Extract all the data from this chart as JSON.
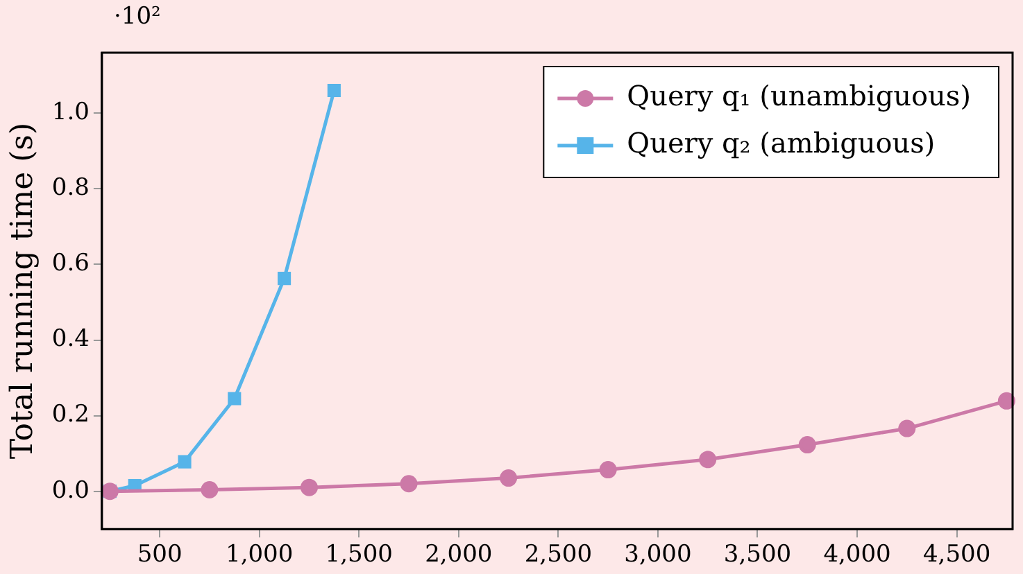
{
  "chart_data": {
    "type": "line",
    "ylabel": "Total running time (s)",
    "annotations": [
      "·10²"
    ],
    "xlim": [
      210,
      4780
    ],
    "ylim": [
      -0.1,
      1.16
    ],
    "xticks": [
      500,
      {
        "value": 1000,
        "label": "1,000"
      },
      {
        "value": 1500,
        "label": "1,500"
      },
      {
        "value": 2000,
        "label": "2,000"
      },
      {
        "value": 2500,
        "label": "2,500"
      },
      {
        "value": 3000,
        "label": "3,000"
      },
      {
        "value": 3500,
        "label": "3,500"
      },
      {
        "value": 4000,
        "label": "4,000"
      },
      {
        "value": 4500,
        "label": "4,500"
      }
    ],
    "yticks": [
      {
        "value": 0,
        "label": "0.0"
      },
      {
        "value": 0.2,
        "label": "0.2"
      },
      {
        "value": 0.4,
        "label": "0.4"
      },
      {
        "value": 0.6,
        "label": "0.6"
      },
      {
        "value": 0.8,
        "label": "0.8"
      },
      {
        "value": 1,
        "label": "1.0"
      }
    ],
    "grid": false,
    "legend": "top right",
    "line_style": "solid",
    "series": [
      {
        "name": "Query q₁ (unambiguous)",
        "color": "#cc79a7",
        "marker": "circle",
        "x": [
          250,
          750,
          1250,
          1750,
          2250,
          2750,
          3250,
          3750,
          4250,
          4750
        ],
        "values": [
          0,
          0.004,
          0.01,
          0.02,
          0.035,
          0.057,
          0.084,
          0.123,
          0.166,
          0.239
        ]
      },
      {
        "name": "Query q₂ (ambiguous)",
        "color": "#56b4e9",
        "marker": "square",
        "x": [
          250,
          375,
          625,
          875,
          1125,
          1375
        ],
        "values": [
          0,
          0.015,
          0.078,
          0.245,
          0.563,
          1.06
        ]
      }
    ]
  }
}
